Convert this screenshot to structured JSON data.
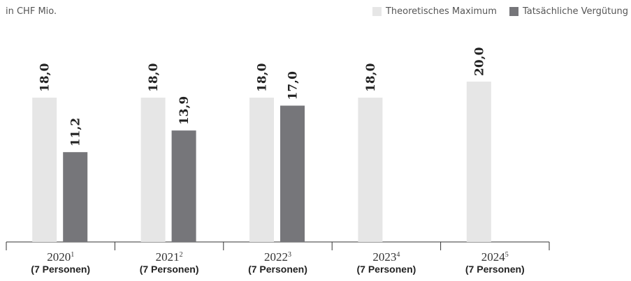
{
  "unit_label": "in CHF Mio.",
  "legend": [
    {
      "label": "Theoretisches Maximum",
      "color": "#e6e6e6"
    },
    {
      "label": "Tatsächliche Vergütung",
      "color": "#76767a"
    }
  ],
  "chart_data": {
    "type": "bar",
    "categories": [
      "2020",
      "2021",
      "2022",
      "2023",
      "2024"
    ],
    "footnotes": [
      "1",
      "2",
      "3",
      "4",
      "5"
    ],
    "sublabels": [
      "(7 Personen)",
      "(7 Personen)",
      "(7 Personen)",
      "(7 Personen)",
      "(7 Personen)"
    ],
    "series": [
      {
        "name": "Theoretisches Maximum",
        "values": [
          18.0,
          18.0,
          18.0,
          18.0,
          20.0
        ],
        "value_labels": [
          "18,0",
          "18,0",
          "18,0",
          "18,0",
          "20,0"
        ],
        "color": "#e6e6e6"
      },
      {
        "name": "Tatsächliche Vergütung",
        "values": [
          11.2,
          13.9,
          17.0,
          null,
          null
        ],
        "value_labels": [
          "11,2",
          "13,9",
          "17,0",
          null,
          null
        ],
        "color": "#76767a"
      }
    ],
    "ylim": [
      0,
      25
    ],
    "grid": false,
    "legend_position": "top-right"
  }
}
